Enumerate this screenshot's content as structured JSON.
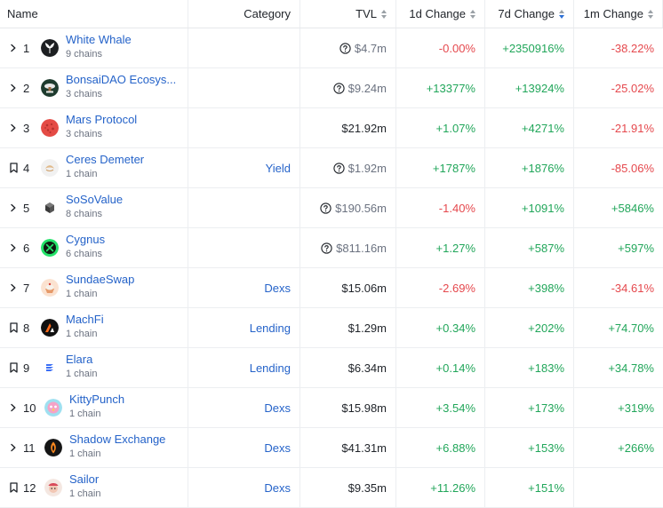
{
  "columns": {
    "name": "Name",
    "category": "Category",
    "tvl": "TVL",
    "change_1d": "1d Change",
    "change_7d": "7d Change",
    "change_1m": "1m Change"
  },
  "colors": {
    "link": "#2563c9",
    "positive": "#21a65a",
    "negative": "#e5484d",
    "sort_active": "#2b6fd6"
  },
  "rows": [
    {
      "control": "chevron-right-icon",
      "rank": "1",
      "name": "White Whale",
      "chains": "9 chains",
      "category": "",
      "tvl": "$4.7m",
      "tvl_info": true,
      "d1": "-0.00%",
      "d7": "+2350916%",
      "m1": "-38.22%",
      "logo": "white-whale-logo"
    },
    {
      "control": "chevron-right-icon",
      "rank": "2",
      "name": "BonsaiDAO Ecosys...",
      "chains": "3 chains",
      "category": "",
      "tvl": "$9.24m",
      "tvl_info": true,
      "d1": "+13377%",
      "d7": "+13924%",
      "m1": "-25.02%",
      "logo": "bonsaidao-logo"
    },
    {
      "control": "chevron-right-icon",
      "rank": "3",
      "name": "Mars Protocol",
      "chains": "3 chains",
      "category": "",
      "tvl": "$21.92m",
      "tvl_info": false,
      "d1": "+1.07%",
      "d7": "+4271%",
      "m1": "-21.91%",
      "logo": "mars-protocol-logo"
    },
    {
      "control": "bookmark-icon",
      "rank": "4",
      "name": "Ceres Demeter",
      "chains": "1 chain",
      "category": "Yield",
      "tvl": "$1.92m",
      "tvl_info": true,
      "d1": "+1787%",
      "d7": "+1876%",
      "m1": "-85.06%",
      "logo": "ceres-demeter-logo"
    },
    {
      "control": "chevron-right-icon",
      "rank": "5",
      "name": "SoSoValue",
      "chains": "8 chains",
      "category": "",
      "tvl": "$190.56m",
      "tvl_info": true,
      "d1": "-1.40%",
      "d7": "+1091%",
      "m1": "+5846%",
      "logo": "sosovalue-logo"
    },
    {
      "control": "chevron-right-icon",
      "rank": "6",
      "name": "Cygnus",
      "chains": "6 chains",
      "category": "",
      "tvl": "$811.16m",
      "tvl_info": true,
      "d1": "+1.27%",
      "d7": "+587%",
      "m1": "+597%",
      "logo": "cygnus-logo"
    },
    {
      "control": "chevron-right-icon",
      "rank": "7",
      "name": "SundaeSwap",
      "chains": "1 chain",
      "category": "Dexs",
      "tvl": "$15.06m",
      "tvl_info": false,
      "d1": "-2.69%",
      "d7": "+398%",
      "m1": "-34.61%",
      "logo": "sundaeswap-logo"
    },
    {
      "control": "bookmark-icon",
      "rank": "8",
      "name": "MachFi",
      "chains": "1 chain",
      "category": "Lending",
      "tvl": "$1.29m",
      "tvl_info": false,
      "d1": "+0.34%",
      "d7": "+202%",
      "m1": "+74.70%",
      "logo": "machfi-logo"
    },
    {
      "control": "bookmark-icon",
      "rank": "9",
      "name": "Elara",
      "chains": "1 chain",
      "category": "Lending",
      "tvl": "$6.34m",
      "tvl_info": false,
      "d1": "+0.14%",
      "d7": "+183%",
      "m1": "+34.78%",
      "logo": "elara-logo"
    },
    {
      "control": "chevron-right-icon",
      "rank": "10",
      "name": "KittyPunch",
      "chains": "1 chain",
      "category": "Dexs",
      "tvl": "$15.98m",
      "tvl_info": false,
      "d1": "+3.54%",
      "d7": "+173%",
      "m1": "+319%",
      "logo": "kittypunch-logo"
    },
    {
      "control": "chevron-right-icon",
      "rank": "11",
      "name": "Shadow Exchange",
      "chains": "1 chain",
      "category": "Dexs",
      "tvl": "$41.31m",
      "tvl_info": false,
      "d1": "+6.88%",
      "d7": "+153%",
      "m1": "+266%",
      "logo": "shadow-exchange-logo"
    },
    {
      "control": "bookmark-icon",
      "rank": "12",
      "name": "Sailor",
      "chains": "1 chain",
      "category": "Dexs",
      "tvl": "$9.35m",
      "tvl_info": false,
      "d1": "+11.26%",
      "d7": "+151%",
      "m1": "",
      "logo": "sailor-logo"
    }
  ]
}
